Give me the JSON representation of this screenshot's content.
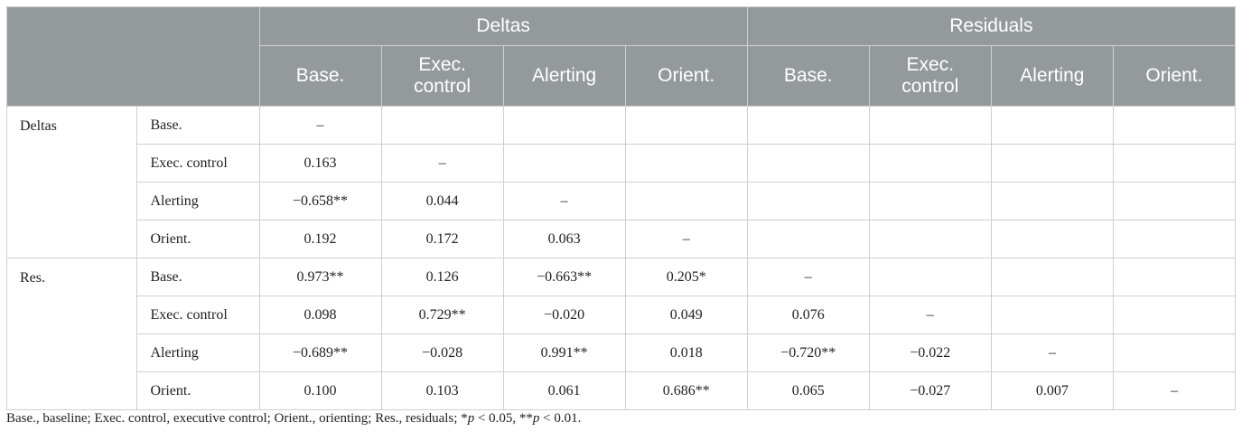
{
  "header": {
    "group_deltas": "Deltas",
    "group_residuals": "Residuals",
    "columns": [
      "Base.",
      "Exec.\ncontrol",
      "Alerting",
      "Orient.",
      "Base.",
      "Exec.\ncontrol",
      "Alerting",
      "Orient."
    ]
  },
  "groups": [
    {
      "label": "Deltas",
      "rows": [
        {
          "label": "Base.",
          "cells": [
            "–",
            "",
            "",
            "",
            "",
            "",
            "",
            ""
          ]
        },
        {
          "label": "Exec. control",
          "cells": [
            "0.163",
            "–",
            "",
            "",
            "",
            "",
            "",
            ""
          ]
        },
        {
          "label": "Alerting",
          "cells": [
            "−0.658**",
            "0.044",
            "–",
            "",
            "",
            "",
            "",
            ""
          ]
        },
        {
          "label": "Orient.",
          "cells": [
            "0.192",
            "0.172",
            "0.063",
            "–",
            "",
            "",
            "",
            ""
          ]
        }
      ]
    },
    {
      "label": "Res.",
      "rows": [
        {
          "label": "Base.",
          "cells": [
            "0.973**",
            "0.126",
            "−0.663**",
            "0.205*",
            "–",
            "",
            "",
            ""
          ]
        },
        {
          "label": "Exec. control",
          "cells": [
            "0.098",
            "0.729**",
            "−0.020",
            "0.049",
            "0.076",
            "–",
            "",
            ""
          ]
        },
        {
          "label": "Alerting",
          "cells": [
            "−0.689**",
            "−0.028",
            "0.991**",
            "0.018",
            "−0.720**",
            "−0.022",
            "–",
            ""
          ]
        },
        {
          "label": "Orient.",
          "cells": [
            "0.100",
            "0.103",
            "0.061",
            "0.686**",
            "0.065",
            "−0.027",
            "0.007",
            "–"
          ]
        }
      ]
    }
  ],
  "footnote": {
    "prefix": "Base., baseline; Exec. control, executive control; Orient., orienting; Res., residuals; *",
    "p1": "p",
    "mid1": " < 0.05, **",
    "p2": "p",
    "mid2": " < 0.01."
  }
}
